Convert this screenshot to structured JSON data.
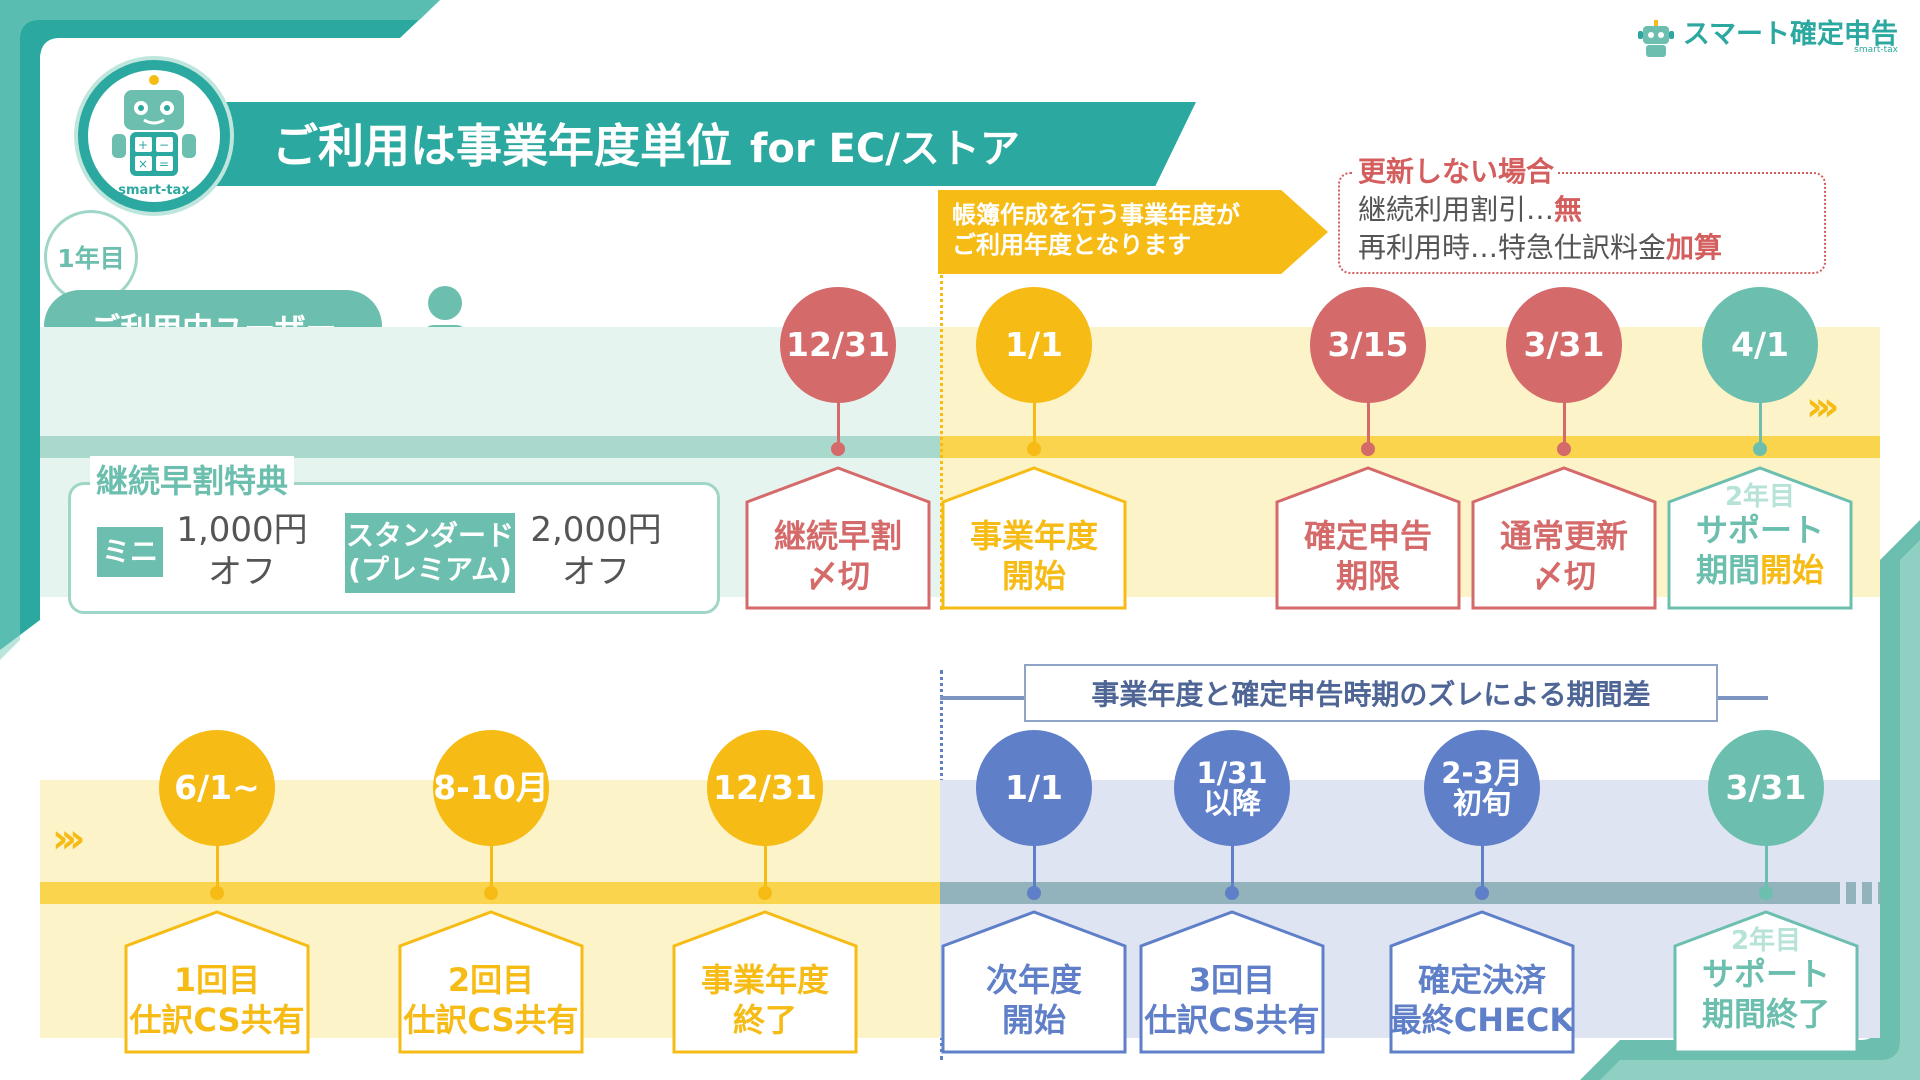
{
  "header": {
    "title": "ご利用は事業年度単位",
    "title_suffix": "for EC/ストア",
    "brand_name": "スマート確定申告",
    "brand_sub": "smart-tax",
    "mascot_label": "smart-tax"
  },
  "user": {
    "year_badge": "1年目",
    "pill_label": "ご利用中ユーザー"
  },
  "callout": {
    "text": "帳簿作成を行う事業年度が\nご利用年度となります"
  },
  "note": {
    "title": "更新しない場合",
    "line1_prefix": "継続利用割引…",
    "line1_value": "無",
    "line2_prefix": "再利用時…特急仕訳料金",
    "line2_value": "加算"
  },
  "perk": {
    "title": "継続早割特典",
    "plans": [
      {
        "name": "ミニ",
        "value": "1,000円\nオフ"
      },
      {
        "name": "スタンダード\n(プレミアム)",
        "value": "2,000円\nオフ"
      }
    ]
  },
  "timeline_top": [
    {
      "date": "12/31",
      "label": "継続早割\n〆切",
      "color": "#d56a6a"
    },
    {
      "date": "1/1",
      "label": "事業年度\n開始",
      "color": "#f6bb14"
    },
    {
      "date": "3/15",
      "label": "確定申告\n期限",
      "color": "#d56a6a"
    },
    {
      "date": "3/31",
      "label": "通常更新\n〆切",
      "color": "#d56a6a"
    },
    {
      "date": "4/1",
      "label_small": "2年目",
      "label": "サポート\n期間",
      "label_highlight": "開始",
      "color": "#6cbfae"
    }
  ],
  "gap_label": "事業年度と確定申告時期のズレによる期間差",
  "timeline_bottom": [
    {
      "date": "6/1~",
      "label": "1回目\n仕訳CS共有",
      "color": "#f6bb14"
    },
    {
      "date": "8-10月",
      "label": "2回目\n仕訳CS共有",
      "color": "#f6bb14"
    },
    {
      "date": "12/31",
      "label": "事業年度\n終了",
      "color": "#f6bb14"
    },
    {
      "date": "1/1",
      "label": "次年度\n開始",
      "color": "#5f7fc9"
    },
    {
      "date": "1/31\n以降",
      "label": "3回目\n仕訳CS共有",
      "color": "#5f7fc9"
    },
    {
      "date": "2-3月\n初旬",
      "label": "確定決済\n最終CHECK",
      "color": "#5f7fc9"
    },
    {
      "date": "3/31",
      "label_small": "2年目",
      "label": "サポート\n期間終了",
      "color": "#6cbfae"
    }
  ],
  "colors": {
    "teal": "#2ba89f",
    "mint": "#6cbfae",
    "yellow": "#f6bb14",
    "red": "#d56a6a",
    "blue": "#5f7fc9"
  }
}
